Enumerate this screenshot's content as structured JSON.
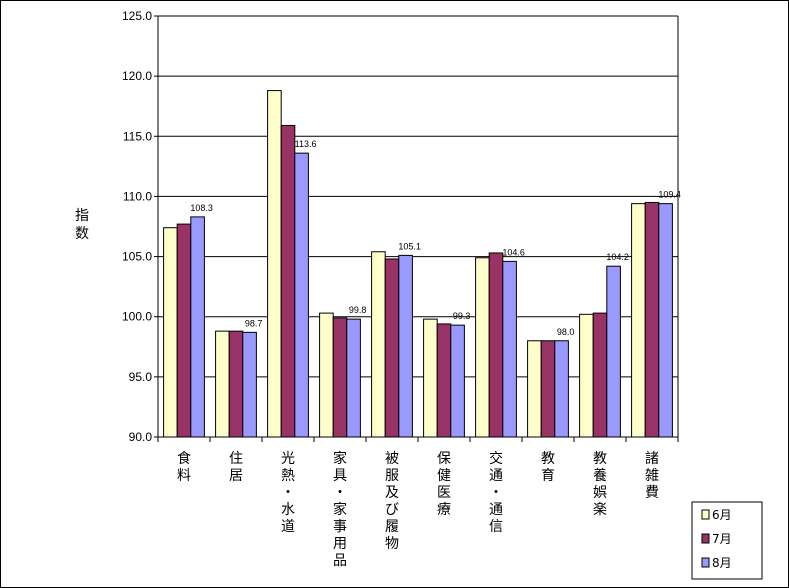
{
  "chart_data": {
    "type": "bar",
    "ylabel": "指数",
    "ylim": [
      90.0,
      125.0
    ],
    "ytick_step": 5.0,
    "yticks": [
      "90.0",
      "95.0",
      "100.0",
      "105.0",
      "110.0",
      "115.0",
      "120.0",
      "125.0"
    ],
    "grid": true,
    "legend_position": "bottom-right",
    "categories": [
      "食料",
      "住居",
      "光熱・水道",
      "家具・家事用品",
      "被服及び履物",
      "保健医療",
      "交通・通信",
      "教育",
      "教養娯楽",
      "諸雑費"
    ],
    "series": [
      {
        "name": "6月",
        "color": "#FFFFCC",
        "values": [
          107.4,
          98.8,
          118.8,
          100.3,
          105.4,
          99.8,
          104.9,
          98.0,
          100.2,
          109.4
        ]
      },
      {
        "name": "7月",
        "color": "#993366",
        "values": [
          107.7,
          98.8,
          115.9,
          99.9,
          104.8,
          99.4,
          105.3,
          98.0,
          100.3,
          109.5
        ]
      },
      {
        "name": "8月",
        "color": "#9999FF",
        "values": [
          108.3,
          98.7,
          113.6,
          99.8,
          105.1,
          99.3,
          104.6,
          98.0,
          104.2,
          109.4
        ]
      }
    ],
    "data_labels": {
      "series": "8月",
      "values": [
        "108.3",
        "98.7",
        "113.6",
        "99.8",
        "105.1",
        "99.3",
        "104.6",
        "98.0",
        "104.2",
        "109.4"
      ]
    }
  }
}
